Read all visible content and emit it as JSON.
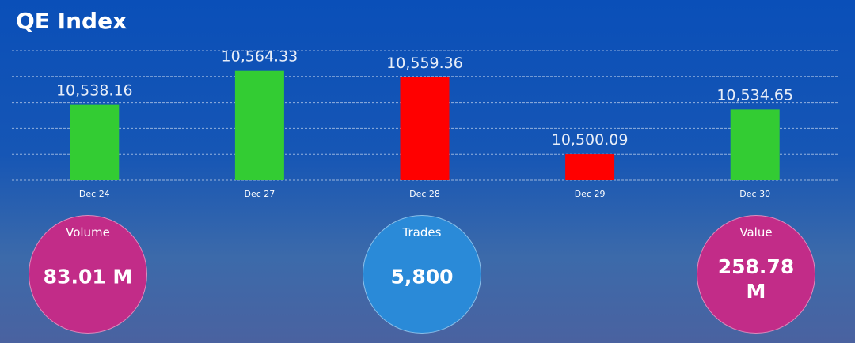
{
  "title": "QE Index",
  "chart_data": {
    "type": "bar",
    "categories": [
      "Dec 24",
      "Dec 27",
      "Dec 28",
      "Dec 29",
      "Dec 30"
    ],
    "values": [
      10538.16,
      10564.33,
      10559.36,
      10500.09,
      10534.65
    ],
    "value_labels": [
      "10,538.16",
      "10,564.33",
      "10,559.36",
      "10,500.09",
      "10,534.65"
    ],
    "colors": [
      "#33cc33",
      "#33cc33",
      "#ff0000",
      "#ff0000",
      "#33cc33"
    ],
    "ylim": [
      10480,
      10580
    ],
    "yticks": [
      10480,
      10500,
      10520,
      10540,
      10560,
      10580
    ],
    "grid": true
  },
  "stats": [
    {
      "label": "Volume",
      "value": "83.01 M",
      "color": "#c22c88"
    },
    {
      "label": "Trades",
      "value": "5,800",
      "color": "#2a8ad8"
    },
    {
      "label": "Value",
      "value": "258.78 M",
      "color": "#c22c88"
    }
  ]
}
